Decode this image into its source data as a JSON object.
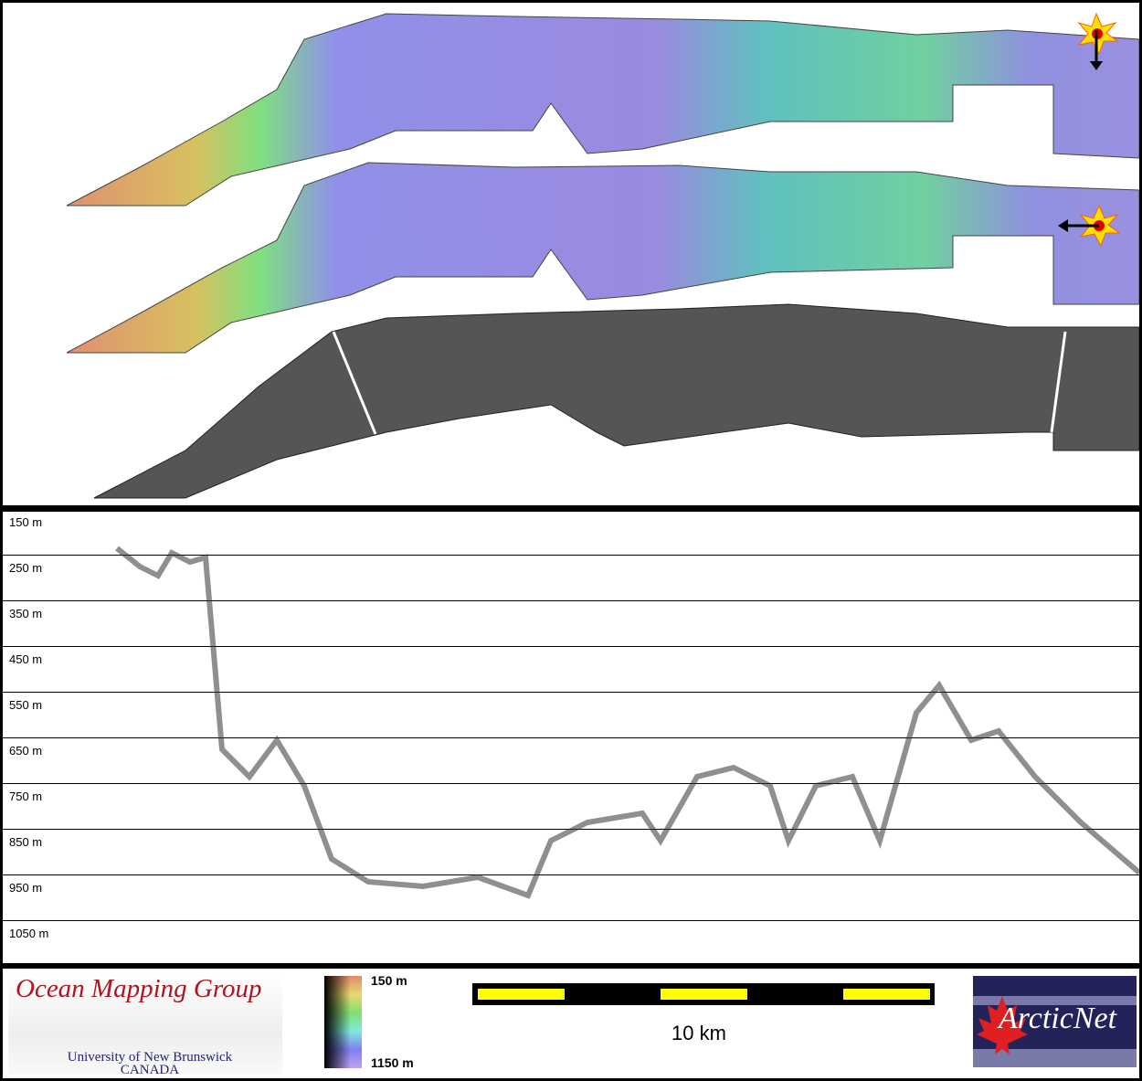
{
  "profile": {
    "depth_labels": [
      "150 m",
      "250 m",
      "350 m",
      "450 m",
      "550 m",
      "650 m",
      "750 m",
      "850 m",
      "950 m",
      "1050 m"
    ]
  },
  "footer": {
    "omg_logo": {
      "title": "Ocean Mapping Group",
      "line1": "University of New Brunswick",
      "line2": "CANADA"
    },
    "colorbar": {
      "min_label": "150 m",
      "max_label": "1150 m",
      "colors": [
        "#e08a6a",
        "#e8d870",
        "#80e070",
        "#80e8e0",
        "#8080f0",
        "#c0a0f0"
      ]
    },
    "scale_bar": {
      "label": "10 km",
      "colors": [
        "#ffff00",
        "#000000"
      ]
    },
    "arcticnet_logo": {
      "text": "ArcticNet"
    }
  }
}
